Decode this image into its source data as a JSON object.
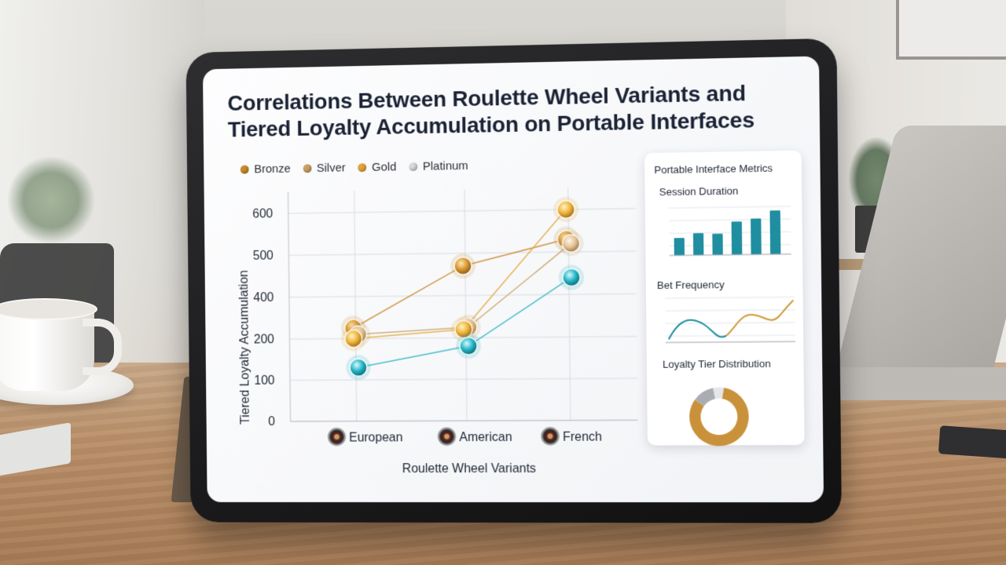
{
  "chart_data": {
    "type": "scatter",
    "title": "Correlations Between Roulette Wheel Variants and Tiered Loyalty Accumulation on Portable Interfaces",
    "title_lines": [
      "Correlations Between Roulette Wheel Variants and",
      "Tiered Loyalty Accumulation on Portable Interfaces"
    ],
    "xlabel": "Roulette Wheel Variants",
    "ylabel": "Tiered Loyalty Accumulation",
    "categories": [
      "European",
      "American",
      "French"
    ],
    "y_ticks": [
      "0",
      "100",
      "200",
      "400",
      "500",
      "600"
    ],
    "legend_position": "top-left",
    "grid": true,
    "series": [
      {
        "name": "Bronze",
        "color": "#c98a2c",
        "values": [
          250,
          470,
          530
        ]
      },
      {
        "name": "Silver",
        "color": "#c9a163",
        "values": [
          220,
          250,
          520
        ]
      },
      {
        "name": "Gold",
        "color": "#e2a63a",
        "values": [
          200,
          240,
          600
        ]
      },
      {
        "name": "Platinum",
        "color": "#2ab3c0",
        "values": [
          130,
          180,
          440
        ]
      }
    ]
  },
  "side_panel": {
    "title": "Portable Interface Metrics",
    "session_duration": {
      "title": "Session Duration",
      "bar_values": [
        0.38,
        0.48,
        0.46,
        0.72,
        0.78,
        0.95
      ]
    },
    "bet_frequency": {
      "title": "Bet Frequency"
    },
    "loyalty_distribution": {
      "title": "Loyalty Tier Distribution",
      "shares": [
        0.82,
        0.12,
        0.06
      ]
    }
  }
}
